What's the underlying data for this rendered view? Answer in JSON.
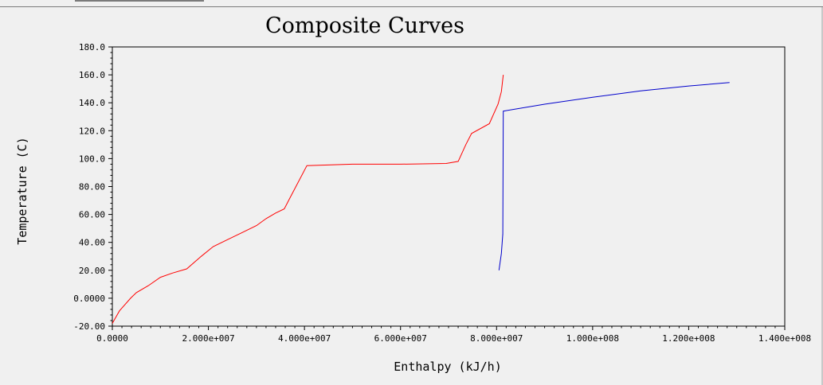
{
  "chart_data": {
    "type": "line",
    "title": "Composite Curves",
    "xlabel": "Enthalpy (kJ/h)",
    "ylabel": "Temperature (C)",
    "xlim": [
      0,
      140000000
    ],
    "ylim": [
      -20,
      180
    ],
    "grid": false,
    "x_ticks": [
      0,
      20000000,
      40000000,
      60000000,
      80000000,
      100000000,
      120000000,
      140000000
    ],
    "x_tick_labels": [
      "0.0000",
      "2.000e+007",
      "4.000e+007",
      "6.000e+007",
      "8.000e+007",
      "1.000e+008",
      "1.200e+008",
      "1.400e+008"
    ],
    "y_ticks": [
      -20,
      0,
      20,
      40,
      60,
      80,
      100,
      120,
      140,
      160,
      180
    ],
    "y_tick_labels": [
      "-20.00",
      "0.0000",
      "20.00",
      "40.00",
      "60.00",
      "80.00",
      "100.0",
      "120.0",
      "140.0",
      "160.0",
      "180.0"
    ],
    "series": [
      {
        "color": "#ff0000",
        "points": [
          [
            0,
            -18
          ],
          [
            1500000,
            -9
          ],
          [
            3800000,
            0
          ],
          [
            5000000,
            4
          ],
          [
            7500000,
            9
          ],
          [
            10000000,
            15
          ],
          [
            12500000,
            18
          ],
          [
            15500000,
            21
          ],
          [
            18500000,
            30
          ],
          [
            21000000,
            37
          ],
          [
            24000000,
            42
          ],
          [
            27000000,
            47
          ],
          [
            30000000,
            52
          ],
          [
            32000000,
            57
          ],
          [
            34000000,
            61
          ],
          [
            35800000,
            64
          ],
          [
            37000000,
            72
          ],
          [
            40500000,
            95
          ],
          [
            50000000,
            96
          ],
          [
            60000000,
            96
          ],
          [
            69500000,
            96.5
          ],
          [
            72000000,
            98
          ],
          [
            73600000,
            110
          ],
          [
            74800000,
            118
          ],
          [
            78500000,
            125
          ],
          [
            80300000,
            139
          ],
          [
            81000000,
            148
          ],
          [
            81400000,
            160
          ]
        ]
      },
      {
        "color": "#0000cc",
        "points": [
          [
            80500000,
            20
          ],
          [
            81000000,
            32
          ],
          [
            81300000,
            46
          ],
          [
            81400000,
            134
          ],
          [
            90000000,
            139
          ],
          [
            100000000,
            144
          ],
          [
            110000000,
            148.5
          ],
          [
            120000000,
            152
          ],
          [
            128500000,
            154.5
          ]
        ]
      }
    ]
  }
}
